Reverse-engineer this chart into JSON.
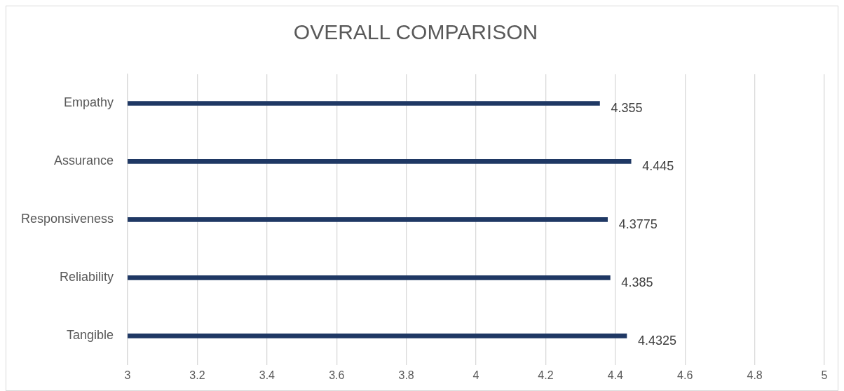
{
  "chart_data": {
    "type": "bar",
    "orientation": "horizontal",
    "title": "OVERALL COMPARISON",
    "categories": [
      "Empathy",
      "Assurance",
      "Responsiveness",
      "Reliability",
      "Tangible"
    ],
    "values": [
      4.355,
      4.445,
      4.3775,
      4.385,
      4.4325
    ],
    "colors": [
      "#1f3864",
      "#1f3864",
      "#1f3864",
      "#1f3864",
      "#1f3864"
    ],
    "xlim": [
      3,
      5
    ],
    "xticks": [
      3,
      3.2,
      3.4,
      3.6,
      3.8,
      4,
      4.2,
      4.4,
      4.6,
      4.8,
      5
    ],
    "grid": "x",
    "data_labels": true
  }
}
